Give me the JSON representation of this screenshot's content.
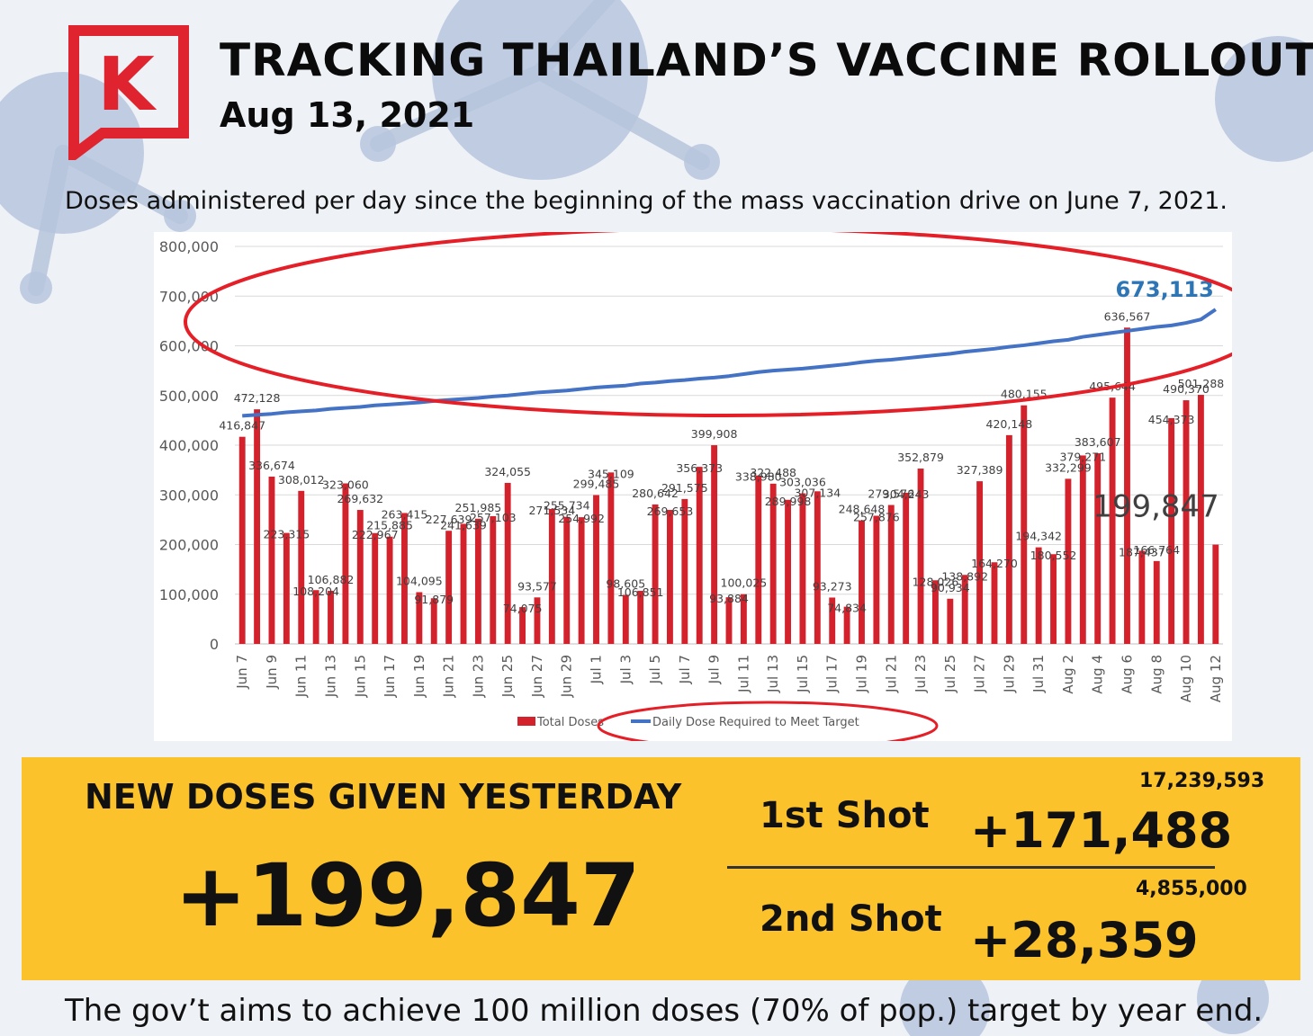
{
  "header": {
    "title": "TRACKING THAILAND’S VACCINE ROLLOUT",
    "date": "Aug 13, 2021",
    "subtitle": "Doses administered per day since the beginning of the mass vaccination drive on June 7, 2021."
  },
  "logo": {
    "letter": "K",
    "color": "#e0242f"
  },
  "colors": {
    "bar": "#d3222c",
    "line": "#4472c4",
    "highlight_circle": "#e51f27",
    "panel": "#fcc22b"
  },
  "chart_data": {
    "type": "bar",
    "categories": [
      "Jun 7",
      "Jun 8",
      "Jun 9",
      "Jun 10",
      "Jun 11",
      "Jun 12",
      "Jun 13",
      "Jun 14",
      "Jun 15",
      "Jun 16",
      "Jun 17",
      "Jun 18",
      "Jun 19",
      "Jun 20",
      "Jun 21",
      "Jun 22",
      "Jun 23",
      "Jun 24",
      "Jun 25",
      "Jun 26",
      "Jun 27",
      "Jun 28",
      "Jun 29",
      "Jun 30",
      "Jul 1",
      "Jul 2",
      "Jul 3",
      "Jul 4",
      "Jul 5",
      "Jul 6",
      "Jul 7",
      "Jul 8",
      "Jul 9",
      "Jul 10",
      "Jul 11",
      "Jul 12",
      "Jul 13",
      "Jul 14",
      "Jul 15",
      "Jul 16",
      "Jul 17",
      "Jul 18",
      "Jul 19",
      "Jul 20",
      "Jul 21",
      "Jul 22",
      "Jul 23",
      "Jul 24",
      "Jul 25",
      "Jul 26",
      "Jul 27",
      "Jul 28",
      "Jul 29",
      "Jul 30",
      "Jul 31",
      "Aug 1",
      "Aug 2",
      "Aug 3",
      "Aug 4",
      "Aug 5",
      "Aug 6",
      "Aug 7",
      "Aug 8",
      "Aug 9",
      "Aug 10",
      "Aug 11",
      "Aug 12"
    ],
    "tick_labels": [
      "Jun 7",
      "Jun 9",
      "Jun 11",
      "Jun 13",
      "Jun 15",
      "Jun 17",
      "Jun 19",
      "Jun 21",
      "Jun 23",
      "Jun 25",
      "Jun 27",
      "Jun 29",
      "Jul 1",
      "Jul 3",
      "Jul 5",
      "Jul 7",
      "Jul 9",
      "Jul 11",
      "Jul 13",
      "Jul 15",
      "Jul 17",
      "Jul 19",
      "Jul 21",
      "Jul 23",
      "Jul 25",
      "Jul 27",
      "Jul 29",
      "Jul 31",
      "Aug 2",
      "Aug 4",
      "Aug 6",
      "Aug 8",
      "Aug 10",
      "Aug 12"
    ],
    "series": [
      {
        "name": "Total Doses",
        "type": "bar",
        "values": [
          416847,
          472128,
          336674,
          223315,
          308012,
          108204,
          106882,
          323060,
          269632,
          222967,
          215885,
          263415,
          104095,
          91879,
          227639,
          241639,
          251985,
          257103,
          324055,
          74075,
          93577,
          271534,
          255734,
          254992,
          299485,
          345109,
          98605,
          106851,
          280642,
          269653,
          291575,
          356373,
          399908,
          93884,
          100025,
          338980,
          322488,
          289998,
          303036,
          307134,
          93273,
          74834,
          248648,
          257876,
          279576,
          304243,
          352879,
          128026,
          90934,
          138892,
          327389,
          164270,
          420148,
          480155,
          194342,
          180552,
          332299,
          379271,
          383607,
          495644,
          636567,
          187437,
          166764,
          454373,
          490370,
          501288,
          199847
        ],
        "data_labels": [
          "416,847",
          "472,128",
          "336,674",
          "223,315",
          "308,012",
          "108,204",
          "106,882",
          "323,060",
          "269,632",
          "222,967",
          "215,885",
          "263,415",
          "104,095",
          "91,879",
          "227,639",
          "241,639",
          "251,985",
          "257,103",
          "324,055",
          "74,075",
          "93,577",
          "271,534",
          "255,734",
          "254,992",
          "299,485",
          "345,109",
          "98,605",
          "106,851",
          "280,642",
          "269,653",
          "291,575",
          "356,373",
          "399,908",
          "93,884",
          "100,025",
          "338,980",
          "322,488",
          "289,998",
          "303,036",
          "307,134",
          "93,273",
          "74,834",
          "248,648",
          "257,876",
          "279,576",
          "304,243",
          "352,879",
          "128,026",
          "90,934",
          "138,892",
          "327,389",
          "164,270",
          "420,148",
          "480,155",
          "194,342",
          "180,552",
          "332,299",
          "379,271",
          "383,607",
          "495,644",
          "636,567",
          "187,437",
          "166,764",
          "454,373",
          "490,370",
          "501,288",
          ""
        ]
      },
      {
        "name": "Daily Dose Required to Meet Target",
        "type": "line",
        "values": [
          459000,
          461000,
          463000,
          466000,
          468000,
          470000,
          473000,
          475000,
          477000,
          480000,
          482000,
          484000,
          486000,
          489000,
          491000,
          493000,
          495000,
          498000,
          500000,
          503000,
          506000,
          508000,
          510000,
          513000,
          516000,
          518000,
          520000,
          524000,
          526000,
          529000,
          531000,
          534000,
          536000,
          539000,
          543000,
          547000,
          550000,
          552000,
          554000,
          557000,
          560000,
          563000,
          567000,
          570000,
          572000,
          575000,
          578000,
          581000,
          584000,
          588000,
          591000,
          594000,
          598000,
          601000,
          605000,
          609000,
          612000,
          618000,
          622000,
          626000,
          630000,
          634000,
          638000,
          641000,
          646000,
          653000,
          673113
        ]
      }
    ],
    "end_labels": {
      "line_last": "673,113",
      "bar_last": "199,847"
    },
    "ylim": [
      0,
      800000
    ],
    "yticks": [
      0,
      100000,
      200000,
      300000,
      400000,
      500000,
      600000,
      700000,
      800000
    ],
    "ytick_labels": [
      "0",
      "100,000",
      "200,000",
      "300,000",
      "400,000",
      "500,000",
      "600,000",
      "700,000",
      "800,000"
    ],
    "grid": true,
    "legend_position": "bottom",
    "xlabel": "",
    "ylabel": ""
  },
  "summary": {
    "new_doses_label": "NEW DOSES GIVEN YESTERDAY",
    "new_doses_value": "+199,847",
    "first_shot_label": "1st Shot",
    "first_shot_total": "17,239,593",
    "first_shot_value": "+171,488",
    "second_shot_label": "2nd Shot",
    "second_shot_total": "4,855,000",
    "second_shot_value": "+28,359"
  },
  "footer": "The gov’t aims to achieve 100 million doses (70% of pop.) target by year end."
}
